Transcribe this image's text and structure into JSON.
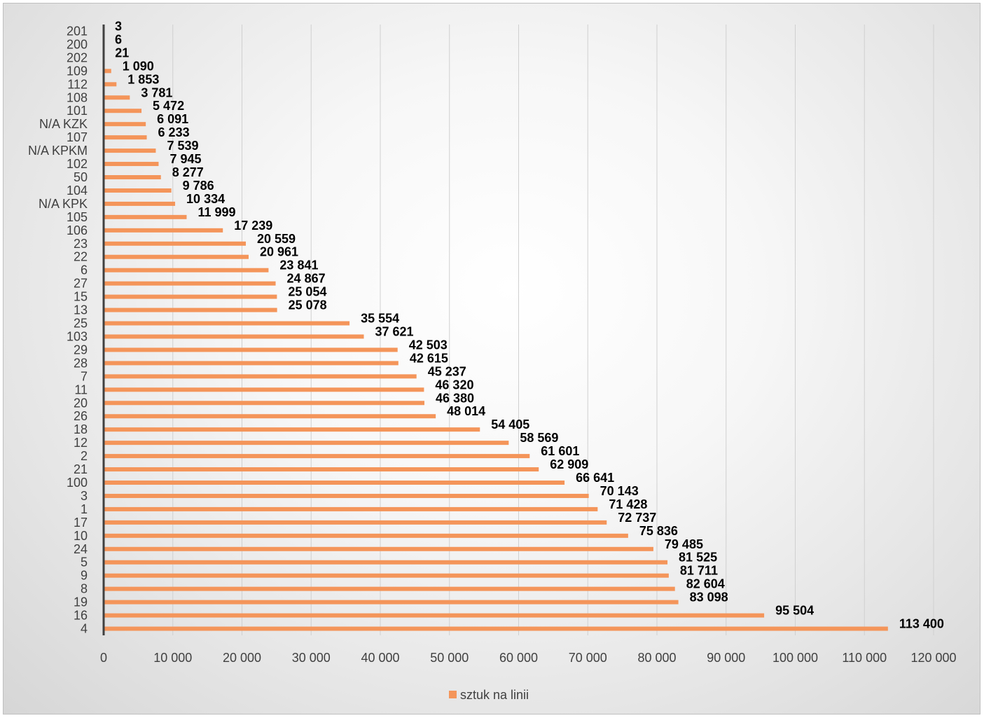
{
  "chart_data": {
    "type": "bar",
    "orientation": "horizontal",
    "categories": [
      "201",
      "200",
      "202",
      "109",
      "112",
      "108",
      "101",
      "N/A KZK",
      "107",
      "N/A KPKM",
      "102",
      "50",
      "104",
      "N/A KPK",
      "105",
      "106",
      "23",
      "22",
      "6",
      "27",
      "15",
      "13",
      "25",
      "103",
      "29",
      "28",
      "7",
      "11",
      "20",
      "26",
      "18",
      "12",
      "2",
      "21",
      "100",
      "3",
      "1",
      "17",
      "10",
      "24",
      "5",
      "9",
      "8",
      "19",
      "16",
      "4"
    ],
    "series": [
      {
        "name": "sztuk na linii",
        "color": "#F4955A",
        "values": [
          3,
          6,
          21,
          1090,
          1853,
          3781,
          5472,
          6091,
          6233,
          7539,
          7945,
          8277,
          9786,
          10334,
          11999,
          17239,
          20559,
          20961,
          23841,
          24867,
          25054,
          25078,
          35554,
          37621,
          42503,
          42615,
          45237,
          46320,
          46380,
          48014,
          54405,
          58569,
          61601,
          62909,
          66641,
          70143,
          71428,
          72737,
          75836,
          79485,
          81525,
          81711,
          82604,
          83098,
          95504,
          113400
        ],
        "labels": [
          "3",
          "6",
          "21",
          "1 090",
          "1 853",
          "3 781",
          "5 472",
          "6 091",
          "6 233",
          "7 539",
          "7 945",
          "8 277",
          "9 786",
          "10 334",
          "11 999",
          "17 239",
          "20 559",
          "20 961",
          "23 841",
          "24 867",
          "25 054",
          "25 078",
          "35 554",
          "37 621",
          "42 503",
          "42 615",
          "45 237",
          "46 320",
          "46 380",
          "48 014",
          "54 405",
          "58 569",
          "61 601",
          "62 909",
          "66 641",
          "70 143",
          "71 428",
          "72 737",
          "75 836",
          "79 485",
          "81 525",
          "81 711",
          "82 604",
          "83 098",
          "95 504",
          "113 400"
        ]
      }
    ],
    "xlim": [
      0,
      120000
    ],
    "xticks": [
      0,
      10000,
      20000,
      30000,
      40000,
      50000,
      60000,
      70000,
      80000,
      90000,
      100000,
      110000,
      120000
    ],
    "xtick_labels": [
      "0",
      "10 000",
      "20 000",
      "30 000",
      "40 000",
      "50 000",
      "60 000",
      "70 000",
      "80 000",
      "90 000",
      "100 000",
      "110 000",
      "120 000"
    ],
    "grid": "vertical",
    "legend": {
      "position": "bottom",
      "label": "sztuk na linii"
    },
    "title": "",
    "xlabel": "",
    "ylabel": ""
  }
}
